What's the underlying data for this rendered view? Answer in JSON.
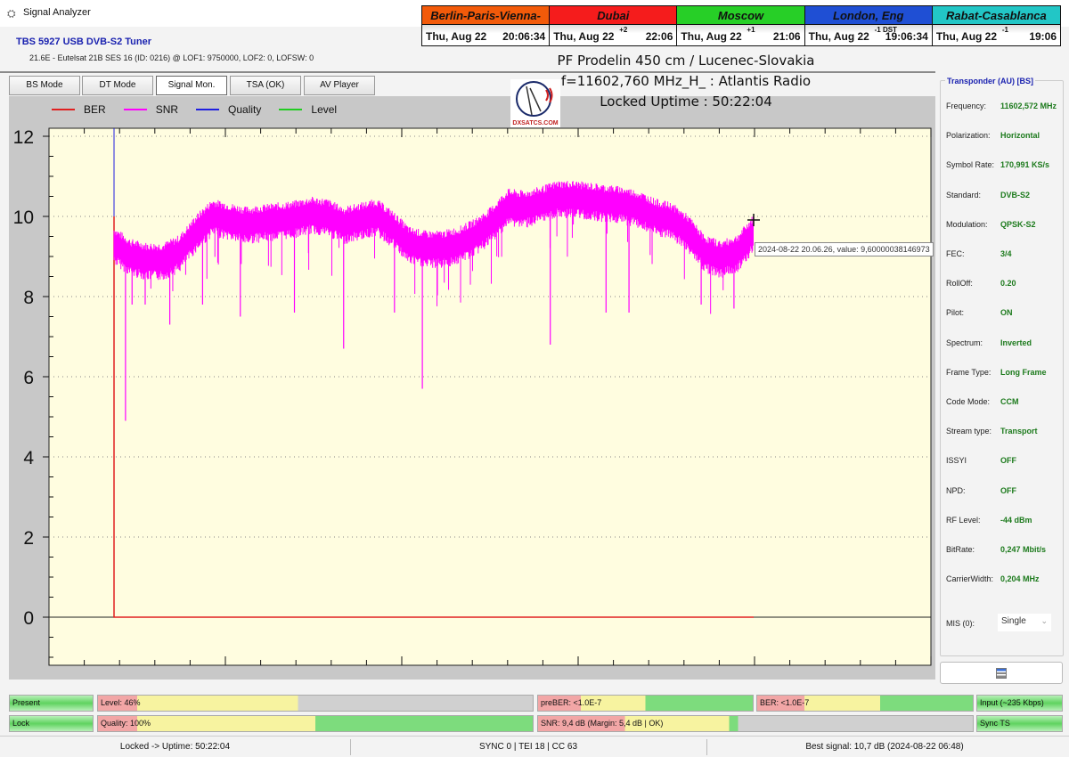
{
  "window": {
    "title": "Signal Analyzer",
    "icon": "satellite-dish-icon"
  },
  "clocks": [
    {
      "city": "Berlin-Paris-Vienna-Roma",
      "color": "#f25a0a",
      "date": "Thu, Aug 22",
      "offset": "",
      "time": "20:06:34"
    },
    {
      "city": "Dubai",
      "color": "#f51c1c",
      "date": "Thu, Aug 22",
      "offset": "+2",
      "time": "22:06"
    },
    {
      "city": "Moscow",
      "color": "#27cf27",
      "date": "Thu, Aug 22",
      "offset": "+1",
      "time": "21:06"
    },
    {
      "city": "London, Eng",
      "color": "#1f4fd4",
      "date": "Thu, Aug 22",
      "offset": "-1 DST",
      "time": "19:06:34"
    },
    {
      "city": "Rabat-Casablanca",
      "color": "#22c6c6",
      "date": "Thu, Aug 22",
      "offset": "-1",
      "time": "19:06"
    }
  ],
  "tuner": {
    "name": "TBS 5927 USB DVB-S2 Tuner",
    "satellite": "21.6E - Eutelsat 21B  SES 16 (ID: 0216) @ LOF1: 9750000, LOF2: 0, LOFSW: 0"
  },
  "info": {
    "line1": "PF Prodelin 450 cm / Lucenec-Slovakia",
    "line2": "f=11602,760 MHz_H_ : Atlantis Radio",
    "line3": "Locked Uptime : 50:22:04",
    "logo": "DXSATCS.COM"
  },
  "tabs": [
    {
      "label": "BS Mode"
    },
    {
      "label": "DT Mode"
    },
    {
      "label": "Signal Mon.",
      "active": true
    },
    {
      "label": "TSA (OK)"
    },
    {
      "label": "AV Player"
    }
  ],
  "chart_data": {
    "type": "line",
    "legend": [
      {
        "name": "BER",
        "color": "#e02020"
      },
      {
        "name": "SNR",
        "color": "#ff00ff"
      },
      {
        "name": "Quality",
        "color": "#2020e0"
      },
      {
        "name": "Level",
        "color": "#22cc22"
      }
    ],
    "legend_position": "top-left",
    "ylim": [
      -1.2,
      12.2
    ],
    "yticks": [
      0,
      2,
      4,
      6,
      8,
      10,
      12
    ],
    "grid": "dotted horizontal at major ticks",
    "background": "#fffde0",
    "snr_samples": [
      9.3,
      9.0,
      8.9,
      8.9,
      9.1,
      9.6,
      10.0,
      9.9,
      9.8,
      9.85,
      9.9,
      9.95,
      10.05,
      10.0,
      9.8,
      9.9,
      10.0,
      9.7,
      9.3,
      9.2,
      9.2,
      9.3,
      9.5,
      9.8,
      10.25,
      10.2,
      10.3,
      10.45,
      10.45,
      10.4,
      10.35,
      10.3,
      10.2,
      10.0,
      9.9,
      9.6,
      9.1,
      8.95,
      9.1,
      9.6
    ],
    "snr_dips": [
      {
        "t": 0.7,
        "min": 4.9
      },
      {
        "t": 1.1,
        "min": 7.8
      },
      {
        "t": 1.9,
        "min": 7.8
      },
      {
        "t": 3.4,
        "min": 7.3
      },
      {
        "t": 5.4,
        "min": 7.8
      },
      {
        "t": 7.7,
        "min": 7.5
      },
      {
        "t": 11.0,
        "min": 7.6
      },
      {
        "t": 14.0,
        "min": 6.7
      },
      {
        "t": 17.1,
        "min": 7.6
      },
      {
        "t": 18.8,
        "min": 5.7
      },
      {
        "t": 26.6,
        "min": 6.8
      },
      {
        "t": 30.0,
        "min": 7.6
      },
      {
        "t": 31.4,
        "min": 7.6
      },
      {
        "t": 35.8,
        "min": 7.8
      },
      {
        "t": 37.8,
        "min": 7.7
      }
    ],
    "ber_value": 0,
    "tooltip": "2024-08-22 20.06.26, value: 9,60000038146973"
  },
  "transponder": {
    "title": "Transponder (AU) [BS]",
    "rows": [
      {
        "k": "Frequency:",
        "v": "11602,572 MHz"
      },
      {
        "k": "Polarization:",
        "v": "Horizontal"
      },
      {
        "k": "Symbol Rate:",
        "v": "170,991 KS/s"
      },
      {
        "k": "Standard:",
        "v": "DVB-S2"
      },
      {
        "k": "Modulation:",
        "v": "QPSK-S2"
      },
      {
        "k": "FEC:",
        "v": "3/4"
      },
      {
        "k": "RollOff:",
        "v": "0.20"
      },
      {
        "k": "Pilot:",
        "v": "ON"
      },
      {
        "k": "Spectrum:",
        "v": "Inverted"
      },
      {
        "k": "Frame Type:",
        "v": "Long Frame"
      },
      {
        "k": "Code Mode:",
        "v": "CCM"
      },
      {
        "k": "Stream type:",
        "v": "Transport"
      },
      {
        "k": "ISSYI",
        "v": "OFF"
      },
      {
        "k": "NPD:",
        "v": "OFF"
      },
      {
        "k": "RF Level:",
        "v": "-44 dBm"
      },
      {
        "k": "BitRate:",
        "v": "0,247 Mbit/s"
      },
      {
        "k": "CarrierWidth:",
        "v": "0,204 MHz"
      }
    ],
    "mis_label": "MIS (0):",
    "mis_value": "Single"
  },
  "status": {
    "present": "Present",
    "lock": "Lock",
    "level": "Level: 46%",
    "level_pct": 46,
    "quality": "Quality: 100%",
    "quality_pct": 100,
    "preber": "preBER: <1.0E-7",
    "ber": "BER: <1.0E-7",
    "snr": "SNR: 9,4 dB (Margin: 5,4 dB | OK)",
    "input": "Input (~235 Kbps)",
    "sync": "Sync TS"
  },
  "footer": {
    "uptime": "Locked -> Uptime: 50:22:04",
    "sync": "SYNC 0 | TEI 18 | CC 63",
    "best": "Best signal: 10,7 dB (2024-08-22 06:48)"
  }
}
